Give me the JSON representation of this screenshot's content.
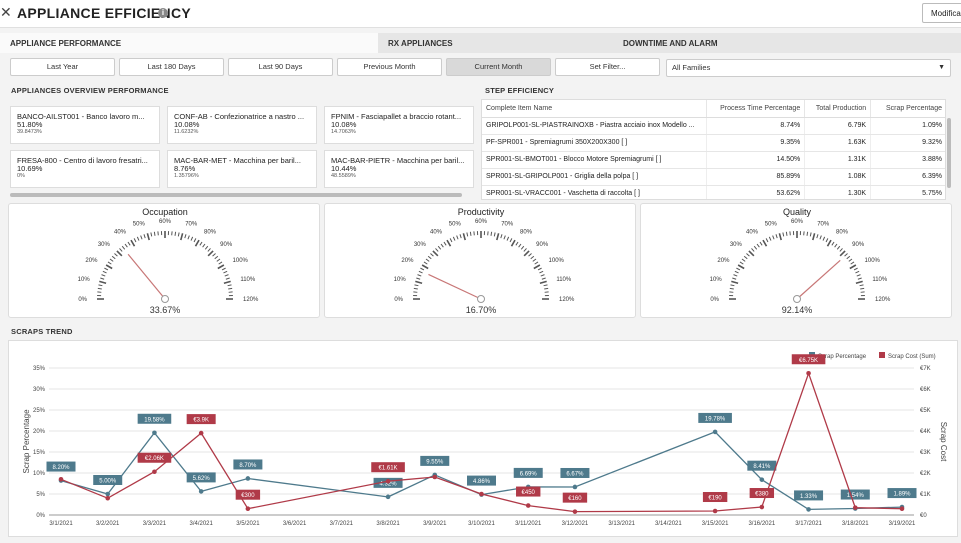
{
  "header": {
    "title": "APPLIANCE EFFICIENCY",
    "modify_label": "Modifica"
  },
  "tabs": [
    {
      "label": "APPLIANCE PERFORMANCE",
      "active": true
    },
    {
      "label": "RX APPLIANCES",
      "active": false
    },
    {
      "label": "DOWNTIME AND ALARM",
      "active": false
    }
  ],
  "filters": [
    {
      "label": "Last Year",
      "active": false
    },
    {
      "label": "Last 180 Days",
      "active": false
    },
    {
      "label": "Last 90 Days",
      "active": false
    },
    {
      "label": "Previous Month",
      "active": false
    },
    {
      "label": "Current Month",
      "active": true
    },
    {
      "label": "Set Filter...",
      "active": false
    }
  ],
  "families_select": {
    "value": "All Families"
  },
  "overview": {
    "title": "APPLIANCES OVERVIEW PERFORMANCE",
    "cards": [
      {
        "name": "BANCO-AILST001 - Banco lavoro m...",
        "pct": "51.80%",
        "sub": "39.8473%"
      },
      {
        "name": "CONF-AB - Confezionatrice a nastro ...",
        "pct": "10.08%",
        "sub": "11.6232%"
      },
      {
        "name": "FPNIM - Fasciapallet a braccio rotant...",
        "pct": "10.08%",
        "sub": "14.7063%"
      },
      {
        "name": "FRESA-800 - Centro di lavoro fresatri...",
        "pct": "10.69%",
        "sub": "0%"
      },
      {
        "name": "MAC-BAR-MET - Macchina per baril...",
        "pct": "8.76%",
        "sub": "1.3579​6%"
      },
      {
        "name": "MAC-BAR-PIETR - Macchina per baril...",
        "pct": "10.44%",
        "sub": "48.5589%"
      }
    ]
  },
  "step_efficiency": {
    "title": "STEP EFFICIENCY",
    "columns": [
      "Complete Item Name",
      "Process Time Percentage",
      "Total Production",
      "Scrap Percentage"
    ],
    "rows": [
      [
        "GRIPOLP001-SL-PIASTRAINOXB - Piastra acciaio inox Modello ...",
        "8.74%",
        "6.79K",
        "1.09%"
      ],
      [
        "PF-SPR001 - Spremiagrumi 350X200X300 [ ]",
        "9.35%",
        "1.63K",
        "9.32%"
      ],
      [
        "SPR001-SL-BMOT001 - Blocco Motore Spremiagrumi [ ]",
        "14.50%",
        "1.31K",
        "3.88%"
      ],
      [
        "SPR001-SL-GRIPOLP001 - Griglia della polpa [ ]",
        "85.89%",
        "1.08K",
        "6.39%"
      ],
      [
        "SPR001-SL-VRACC001 - Vaschetta di raccolta [ ]",
        "53.62%",
        "1.30K",
        "5.75%"
      ]
    ]
  },
  "gauges": [
    {
      "title": "Occupation",
      "value": 33.67,
      "value_label": "33.67%"
    },
    {
      "title": "Productivity",
      "value": 16.7,
      "value_label": "16.70%"
    },
    {
      "title": "Quality",
      "value": 92.14,
      "value_label": "92.14%"
    }
  ],
  "gauge_ticks": [
    "0%",
    "10%",
    "20%",
    "30%",
    "40%",
    "50%",
    "60%",
    "70%",
    "80%",
    "90%",
    "100%",
    "110%",
    "120%"
  ],
  "scraps": {
    "title": "SCRAPS TREND"
  },
  "chart_data": {
    "type": "line",
    "title": "SCRAPS TREND",
    "x": [
      "3/1/2021",
      "3/2/2021",
      "3/3/2021",
      "3/4/2021",
      "3/5/2021",
      "3/6/2021",
      "3/7/2021",
      "3/8/2021",
      "3/9/2021",
      "3/10/2021",
      "3/11/2021",
      "3/12/2021",
      "3/13/2021",
      "3/14/2021",
      "3/15/2021",
      "3/16/2021",
      "3/17/2021",
      "3/18/2021",
      "3/19/2021"
    ],
    "ylabel": "Scrap Percentage",
    "y2label": "Scrap Cost",
    "ylim": [
      0,
      35
    ],
    "y2lim": [
      0,
      7000
    ],
    "yticks": [
      "0%",
      "5%",
      "10%",
      "15%",
      "20%",
      "25%",
      "30%",
      "35%"
    ],
    "y2ticks": [
      "€0",
      "€1K",
      "€2K",
      "€3K",
      "€4K",
      "€5K",
      "€6K",
      "€7K"
    ],
    "legend_position": "top-right",
    "series": [
      {
        "name": "Scrap Percentage",
        "color": "#4e7a8c",
        "values": [
          8.2,
          5.0,
          19.58,
          5.62,
          8.7,
          null,
          null,
          4.32,
          9.55,
          4.86,
          6.69,
          6.67,
          null,
          null,
          19.78,
          8.41,
          1.33,
          1.54,
          1.89
        ],
        "labels": [
          "8.20%",
          "5.00%",
          "19.58%",
          "5.62%",
          "8.70%",
          null,
          null,
          "4.32%",
          "9.55%",
          "4.86%",
          "6.69%",
          "6.67%",
          null,
          null,
          "19.78%",
          "8.41%",
          "1.33%",
          "1.54%",
          "1.89%"
        ]
      },
      {
        "name": "Scrap Cost (Sum)",
        "color": "#b03a48",
        "values": [
          1700,
          800,
          2060,
          3900,
          300,
          null,
          null,
          1610,
          1810,
          1000,
          450,
          160,
          null,
          null,
          190,
          380,
          6750,
          350,
          300
        ],
        "labels": [
          null,
          null,
          "€2.06K",
          "€3.9K",
          "€300",
          null,
          null,
          "€1.61K",
          null,
          null,
          "€450",
          "€160",
          null,
          null,
          "€190",
          "€380",
          "€6.75K",
          null,
          null
        ]
      }
    ]
  }
}
